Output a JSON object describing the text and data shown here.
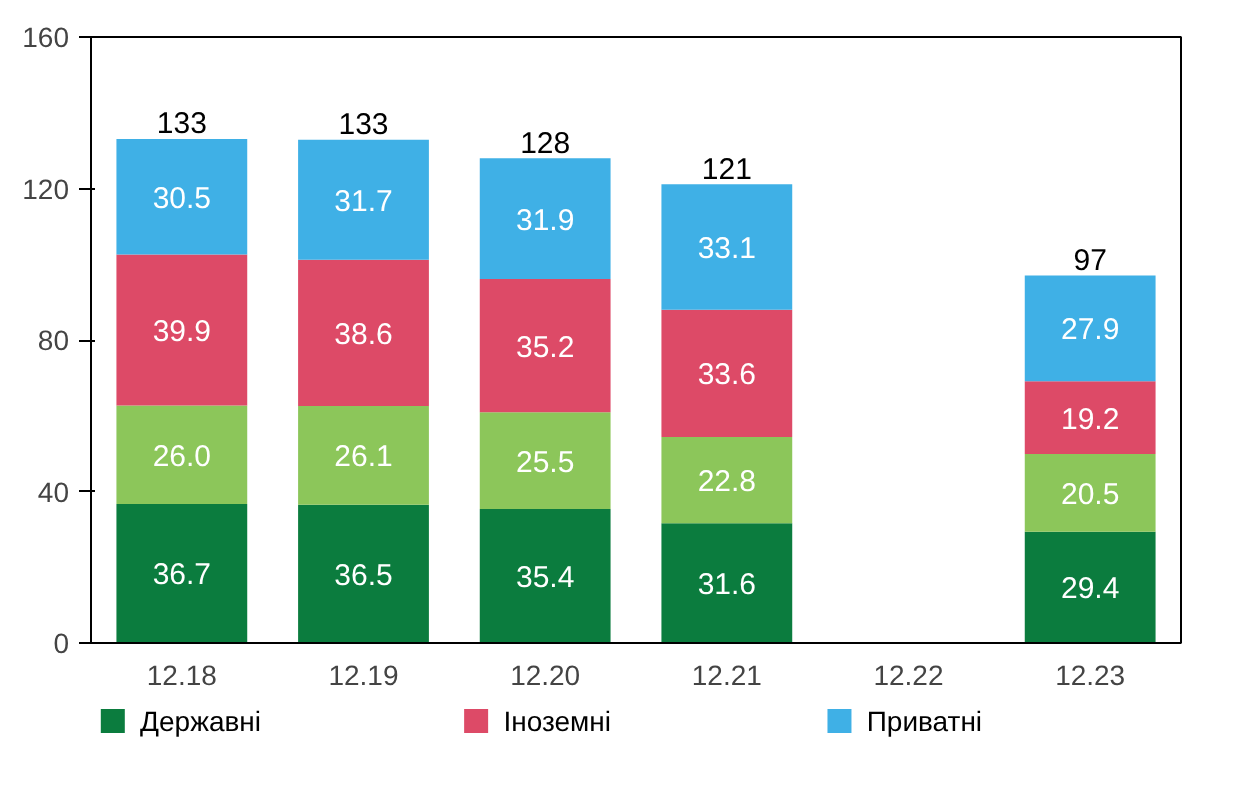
{
  "chart_data": {
    "type": "bar",
    "stacked": true,
    "categories": [
      "12.18",
      "12.19",
      "12.20",
      "12.21",
      "12.22",
      "12.23"
    ],
    "series": [
      {
        "name": "Державні",
        "color": "#0b7c3e",
        "values": [
          36.7,
          36.5,
          35.4,
          31.6,
          null,
          29.4
        ]
      },
      {
        "color": "#8cc65a",
        "values": [
          26.0,
          26.1,
          25.5,
          22.8,
          null,
          20.5
        ],
        "value_labels": [
          "26.0",
          "26.1",
          "25.5",
          "22.8",
          null,
          "20.5"
        ]
      },
      {
        "name": "Іноземні",
        "color": "#dd4a67",
        "values": [
          39.9,
          38.6,
          35.2,
          33.6,
          null,
          19.2
        ]
      },
      {
        "name": "Приватні",
        "color": "#3fb0e6",
        "values": [
          30.5,
          31.7,
          31.9,
          33.1,
          null,
          27.9
        ]
      }
    ],
    "totals": [
      "133",
      "133",
      "128",
      "121",
      null,
      "97"
    ],
    "data_labels": true,
    "ylim": [
      0,
      160
    ],
    "yticks": [
      0,
      40,
      80,
      120,
      160
    ],
    "grid": false,
    "legend": "bottom"
  }
}
